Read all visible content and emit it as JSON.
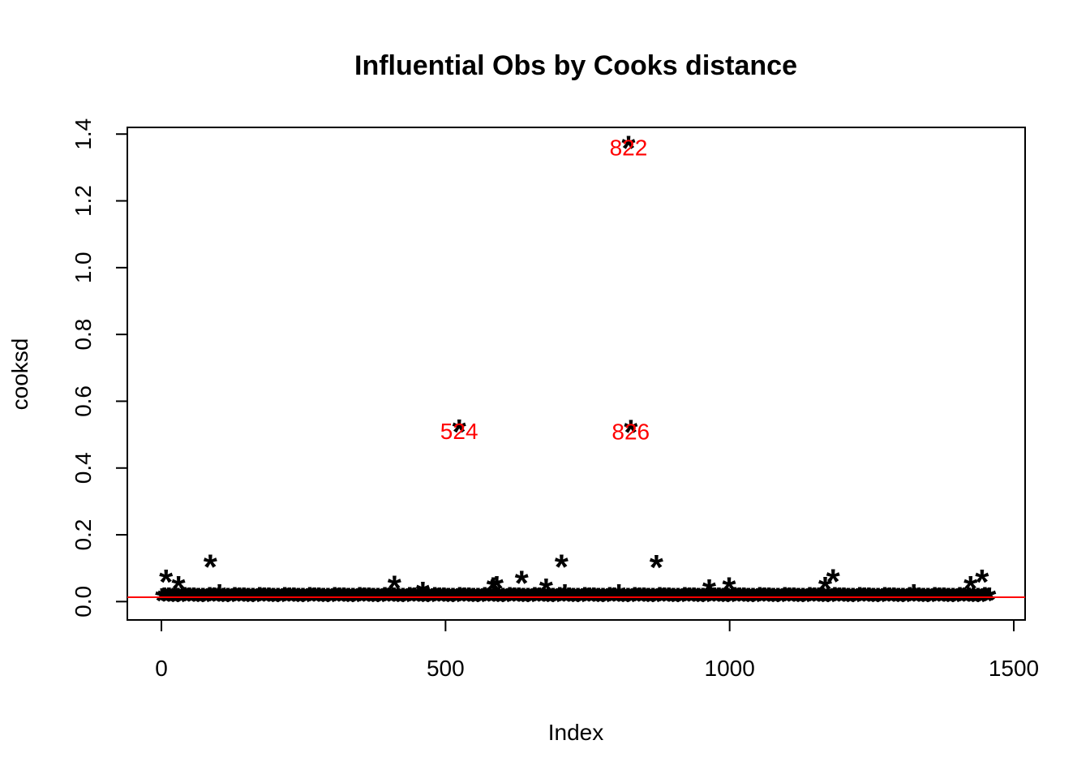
{
  "chart_data": {
    "type": "scatter",
    "title": "Influential Obs by Cooks distance",
    "xlabel": "Index",
    "ylabel": "cooksd",
    "xlim": [
      -60,
      1520
    ],
    "ylim": [
      -0.055,
      1.42
    ],
    "x_ticks": [
      0,
      500,
      1000,
      1500
    ],
    "x_tick_labels": [
      "0",
      "500",
      "1000",
      "1500"
    ],
    "y_ticks": [
      0.0,
      0.2,
      0.4,
      0.6,
      0.8,
      1.0,
      1.2,
      1.4
    ],
    "y_tick_labels": [
      "0.0",
      "0.2",
      "0.4",
      "0.6",
      "0.8",
      "1.0",
      "1.2",
      "1.4"
    ],
    "marker": "*",
    "marker_color": "#000000",
    "n_points": 1460,
    "baseline_cooksd": 0.003,
    "threshold": {
      "value": 0.013,
      "color": "#ff0000"
    },
    "notable_points": [
      {
        "x": 8,
        "y": 0.062
      },
      {
        "x": 30,
        "y": 0.042
      },
      {
        "x": 86,
        "y": 0.107
      },
      {
        "x": 102,
        "y": 0.018
      },
      {
        "x": 410,
        "y": 0.043
      },
      {
        "x": 460,
        "y": 0.025
      },
      {
        "x": 524,
        "y": 0.511,
        "label": "524"
      },
      {
        "x": 584,
        "y": 0.038
      },
      {
        "x": 590,
        "y": 0.042
      },
      {
        "x": 634,
        "y": 0.058
      },
      {
        "x": 677,
        "y": 0.035
      },
      {
        "x": 704,
        "y": 0.107
      },
      {
        "x": 710,
        "y": 0.018
      },
      {
        "x": 805,
        "y": 0.018
      },
      {
        "x": 822,
        "y": 1.36,
        "label": "822"
      },
      {
        "x": 826,
        "y": 0.51,
        "label": "826"
      },
      {
        "x": 871,
        "y": 0.105
      },
      {
        "x": 964,
        "y": 0.032
      },
      {
        "x": 999,
        "y": 0.038
      },
      {
        "x": 1168,
        "y": 0.04
      },
      {
        "x": 1182,
        "y": 0.063
      },
      {
        "x": 1324,
        "y": 0.018
      },
      {
        "x": 1424,
        "y": 0.042
      },
      {
        "x": 1444,
        "y": 0.062
      }
    ]
  }
}
